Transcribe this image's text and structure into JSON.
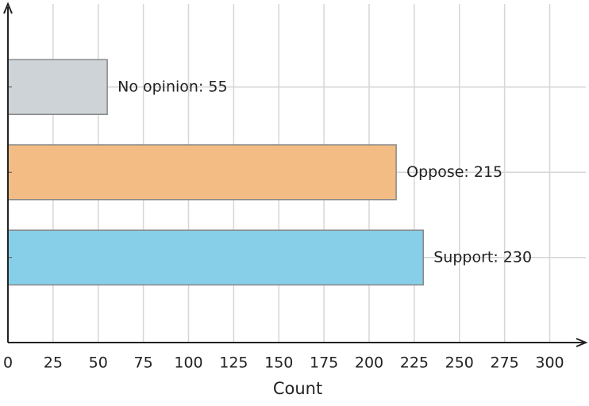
{
  "chart_data": {
    "type": "bar",
    "orientation": "horizontal",
    "values": [
      230,
      215,
      55
    ],
    "value_labels": [
      "Support: 230",
      "Oppose: 215",
      "No opinion: 55"
    ],
    "colors": [
      "#87cee8",
      "#f3bc84",
      "#cdd3d6"
    ],
    "xlabel": "Count",
    "xlim": [
      0,
      320
    ],
    "xticks": [
      0,
      25,
      50,
      75,
      100,
      125,
      150,
      175,
      200,
      225,
      250,
      275,
      300
    ],
    "grid": true
  }
}
